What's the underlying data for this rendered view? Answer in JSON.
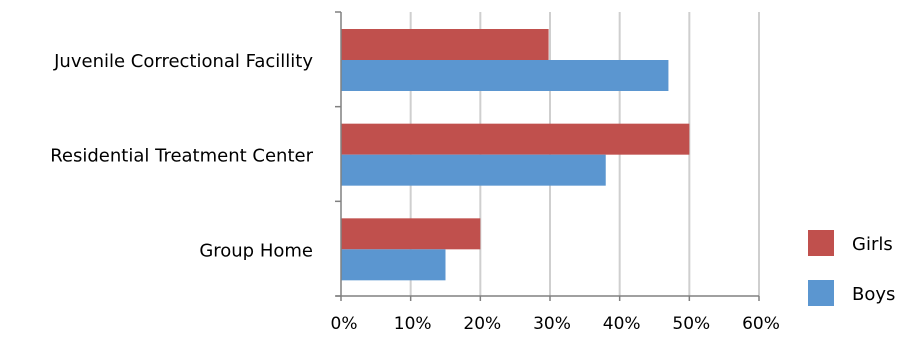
{
  "chart_data": {
    "type": "bar",
    "orientation": "horizontal",
    "categories": [
      "Juvenile Correctional Facillity",
      "Residential Treatment Center",
      "Group Home"
    ],
    "series": [
      {
        "name": "Girls",
        "color": "#c0504d",
        "values": [
          29.8,
          50.0,
          20.0
        ]
      },
      {
        "name": "Boys",
        "color": "#5b96d0",
        "values": [
          47.0,
          38.0,
          15.0
        ]
      }
    ],
    "x_ticks": [
      "0%",
      "10%",
      "20%",
      "30%",
      "40%",
      "50%",
      "60%"
    ],
    "xlim": [
      0,
      60
    ],
    "grid": true,
    "legend_position": "right",
    "title": "",
    "xlabel": "",
    "ylabel": ""
  }
}
